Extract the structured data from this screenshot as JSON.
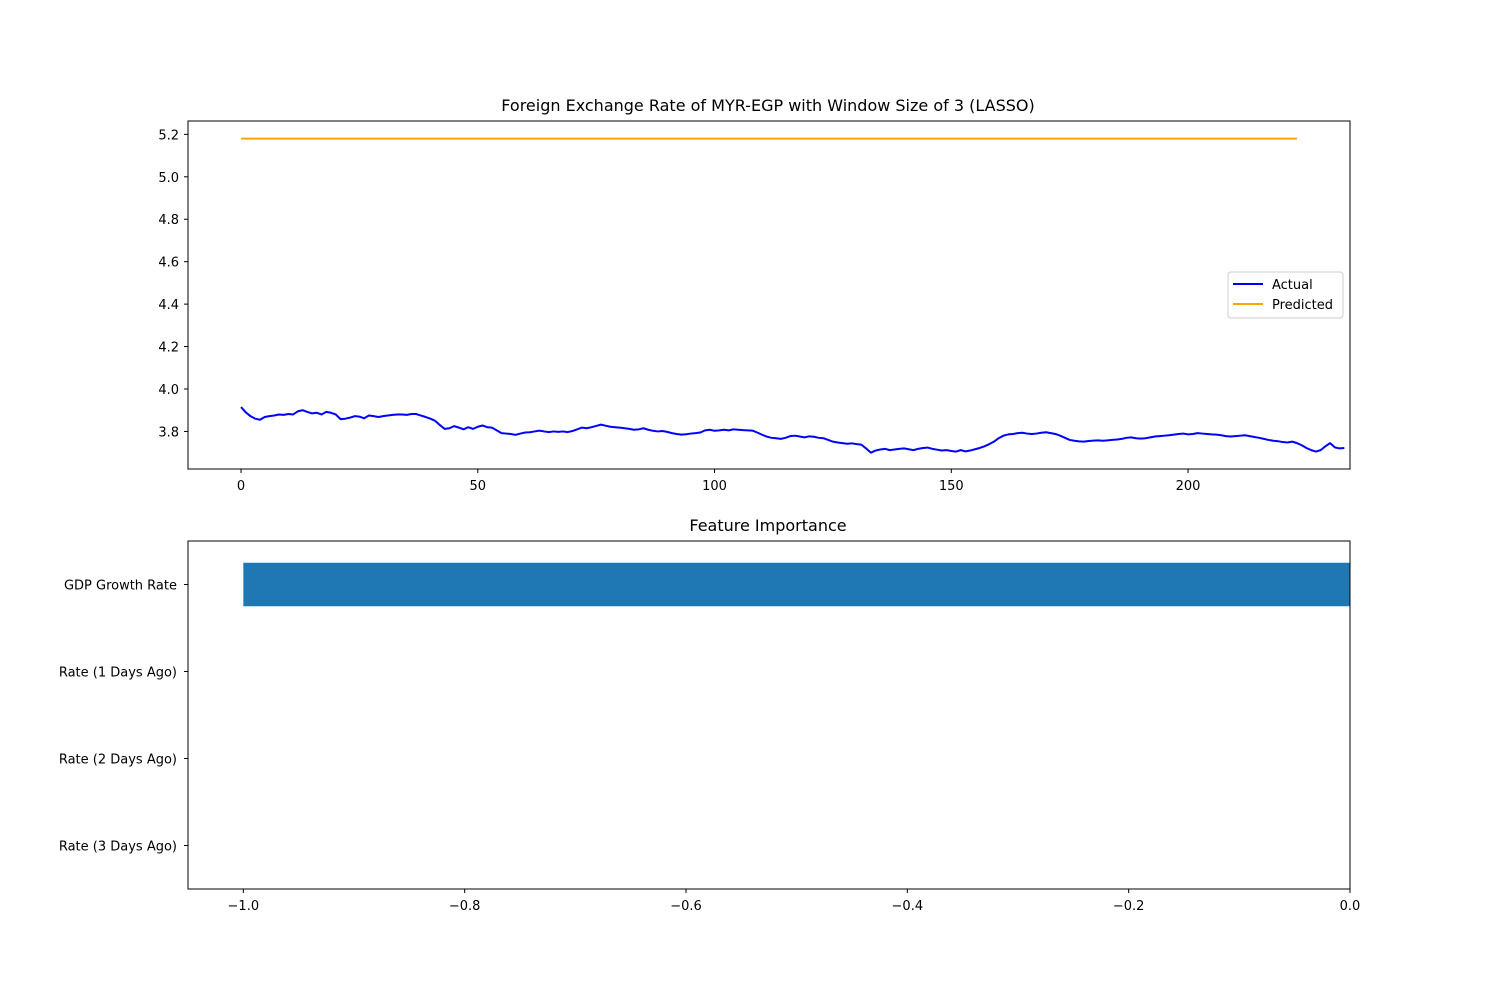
{
  "chart_data": [
    {
      "type": "line",
      "title": "Foreign Exchange Rate of MYR-EGP with Window Size of 3 (LASSO)",
      "xlabel": "",
      "ylabel": "",
      "xlim": [
        -11.2,
        234.2
      ],
      "ylim": [
        3.623,
        5.263
      ],
      "xticks": [
        0,
        50,
        100,
        150,
        200
      ],
      "yticks": [
        3.8,
        4.0,
        4.2,
        4.4,
        4.6,
        4.8,
        5.0,
        5.2
      ],
      "xtick_labels": [
        "0",
        "50",
        "100",
        "150",
        "200"
      ],
      "ytick_labels": [
        "3.8",
        "4.0",
        "4.2",
        "4.4",
        "4.6",
        "4.8",
        "5.0",
        "5.2"
      ],
      "legend_position": "center-right",
      "grid": false,
      "series": [
        {
          "name": "Actual",
          "color": "#0000ff",
          "y": [
            3.915,
            3.89,
            3.872,
            3.86,
            3.855,
            3.868,
            3.872,
            3.875,
            3.88,
            3.878,
            3.882,
            3.88,
            3.895,
            3.9,
            3.892,
            3.885,
            3.888,
            3.88,
            3.892,
            3.888,
            3.88,
            3.858,
            3.86,
            3.865,
            3.872,
            3.87,
            3.862,
            3.875,
            3.872,
            3.868,
            3.872,
            3.875,
            3.878,
            3.88,
            3.88,
            3.878,
            3.882,
            3.882,
            3.875,
            3.868,
            3.86,
            3.85,
            3.83,
            3.812,
            3.815,
            3.825,
            3.818,
            3.81,
            3.82,
            3.812,
            3.822,
            3.828,
            3.82,
            3.818,
            3.805,
            3.792,
            3.79,
            3.788,
            3.784,
            3.79,
            3.795,
            3.796,
            3.8,
            3.804,
            3.8,
            3.797,
            3.8,
            3.798,
            3.8,
            3.797,
            3.802,
            3.81,
            3.818,
            3.815,
            3.82,
            3.826,
            3.832,
            3.827,
            3.822,
            3.82,
            3.818,
            3.815,
            3.812,
            3.808,
            3.81,
            3.815,
            3.808,
            3.803,
            3.8,
            3.802,
            3.798,
            3.792,
            3.788,
            3.785,
            3.787,
            3.79,
            3.792,
            3.795,
            3.805,
            3.808,
            3.803,
            3.805,
            3.808,
            3.805,
            3.81,
            3.808,
            3.806,
            3.805,
            3.804,
            3.795,
            3.785,
            3.776,
            3.77,
            3.768,
            3.765,
            3.77,
            3.778,
            3.78,
            3.776,
            3.772,
            3.777,
            3.775,
            3.77,
            3.768,
            3.76,
            3.752,
            3.748,
            3.745,
            3.742,
            3.744,
            3.74,
            3.738,
            3.72,
            3.7,
            3.71,
            3.715,
            3.718,
            3.712,
            3.715,
            3.718,
            3.72,
            3.716,
            3.712,
            3.718,
            3.722,
            3.724,
            3.718,
            3.714,
            3.71,
            3.712,
            3.708,
            3.705,
            3.712,
            3.706,
            3.71,
            3.716,
            3.722,
            3.73,
            3.74,
            3.752,
            3.768,
            3.78,
            3.786,
            3.788,
            3.792,
            3.794,
            3.79,
            3.788,
            3.79,
            3.794,
            3.796,
            3.792,
            3.788,
            3.78,
            3.77,
            3.76,
            3.756,
            3.753,
            3.752,
            3.755,
            3.757,
            3.758,
            3.756,
            3.758,
            3.76,
            3.762,
            3.765,
            3.77,
            3.772,
            3.768,
            3.766,
            3.768,
            3.772,
            3.776,
            3.778,
            3.78,
            3.782,
            3.785,
            3.788,
            3.79,
            3.786,
            3.788,
            3.792,
            3.79,
            3.788,
            3.786,
            3.785,
            3.782,
            3.778,
            3.776,
            3.778,
            3.78,
            3.782,
            3.778,
            3.774,
            3.77,
            3.765,
            3.76,
            3.756,
            3.754,
            3.75,
            3.748,
            3.752,
            3.745,
            3.735,
            3.722,
            3.712,
            3.705,
            3.712,
            3.73,
            3.745,
            3.725,
            3.72,
            3.722
          ]
        },
        {
          "name": "Predicted",
          "color": "#ffa500",
          "y_constant": 5.18,
          "x_range": [
            0,
            223
          ]
        }
      ]
    },
    {
      "type": "bar",
      "orientation": "horizontal",
      "title": "Feature Importance",
      "xlabel": "",
      "ylabel": "",
      "xlim": [
        -1.05,
        0.0
      ],
      "xticks": [
        -1.0,
        -0.8,
        -0.6,
        -0.4,
        -0.2,
        0.0
      ],
      "xtick_labels": [
        "−1.0",
        "−0.8",
        "−0.6",
        "−0.4",
        "−0.2",
        "0.0"
      ],
      "categories": [
        "GDP Growth Rate",
        "Rate (1 Days Ago)",
        "Rate (2 Days Ago)",
        "Rate (3 Days Ago)"
      ],
      "values": [
        -1.0,
        0.0,
        0.0,
        0.0
      ],
      "color": "#1f77b4",
      "grid": false
    }
  ]
}
